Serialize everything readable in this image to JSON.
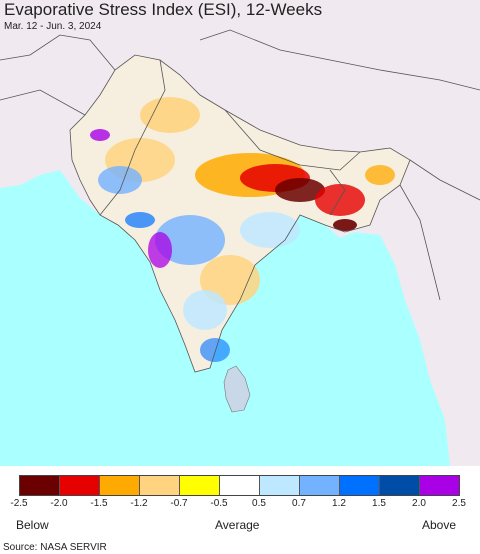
{
  "title": "Evaporative Stress Index (ESI), 12-Weeks",
  "subtitle": "Mar. 12 - Jun. 3, 2024",
  "colors": {
    "ocean": "#aaffff",
    "land_outside": "#f0eaf0",
    "border": "#555555"
  },
  "legend": {
    "swatches": [
      "#6b0000",
      "#e60000",
      "#ffaa00",
      "#ffd37f",
      "#ffff00",
      "#ffffff",
      "#bee8ff",
      "#73b2ff",
      "#0070ff",
      "#004da8",
      "#a900e6"
    ],
    "ticks": [
      "-2.5",
      "-2.0",
      "-1.5",
      "-1.2",
      "-0.7",
      "-0.5",
      "0.5",
      "0.7",
      "1.2",
      "1.5",
      "2.0",
      "2.5"
    ],
    "below_label": "Below",
    "average_label": "Average",
    "above_label": "Above"
  },
  "source": "Source: NASA SERVIR"
}
